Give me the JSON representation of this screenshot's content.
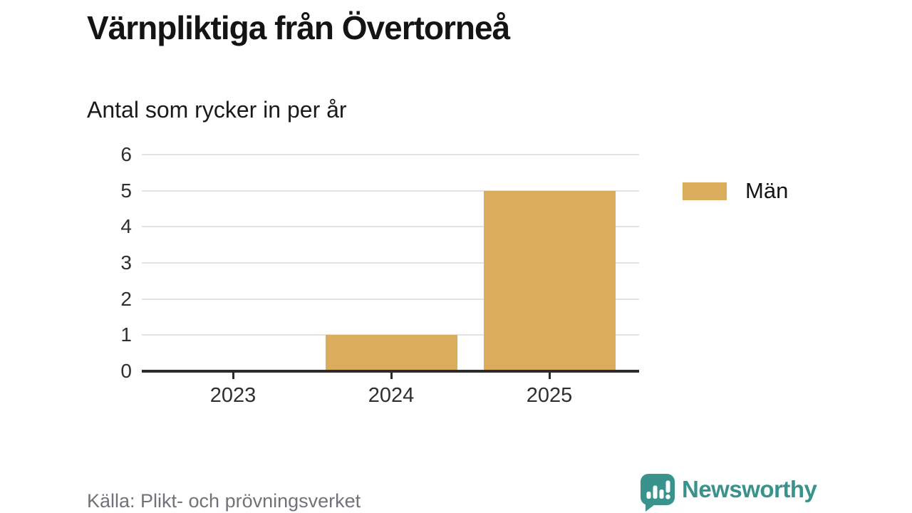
{
  "chart_data": {
    "type": "bar",
    "title": "Värnpliktiga från Övertorneå",
    "subtitle": "Antal som rycker in per år",
    "categories": [
      "2023",
      "2024",
      "2025"
    ],
    "series": [
      {
        "name": "Män",
        "values": [
          0,
          1,
          5
        ]
      }
    ],
    "ylim": [
      0,
      6
    ],
    "yticks": [
      0,
      1,
      2,
      3,
      4,
      5,
      6
    ],
    "grid": "horizontal",
    "legend_position": "right",
    "source": "Källa: Plikt- och prövningsverket"
  },
  "legend": {
    "items": [
      {
        "label": "Män"
      }
    ]
  },
  "footer": {
    "source": "Källa: Plikt- och prövningsverket"
  },
  "branding": {
    "name": "Newsworthy"
  },
  "colors": {
    "bar": "#DAAC5C",
    "grid": "#E3E3E3",
    "axis": "#2B2B2B",
    "tick_text": "#2F2F2F",
    "title_text": "#141414",
    "muted_text": "#72727A",
    "brand_teal": "#39938C"
  }
}
